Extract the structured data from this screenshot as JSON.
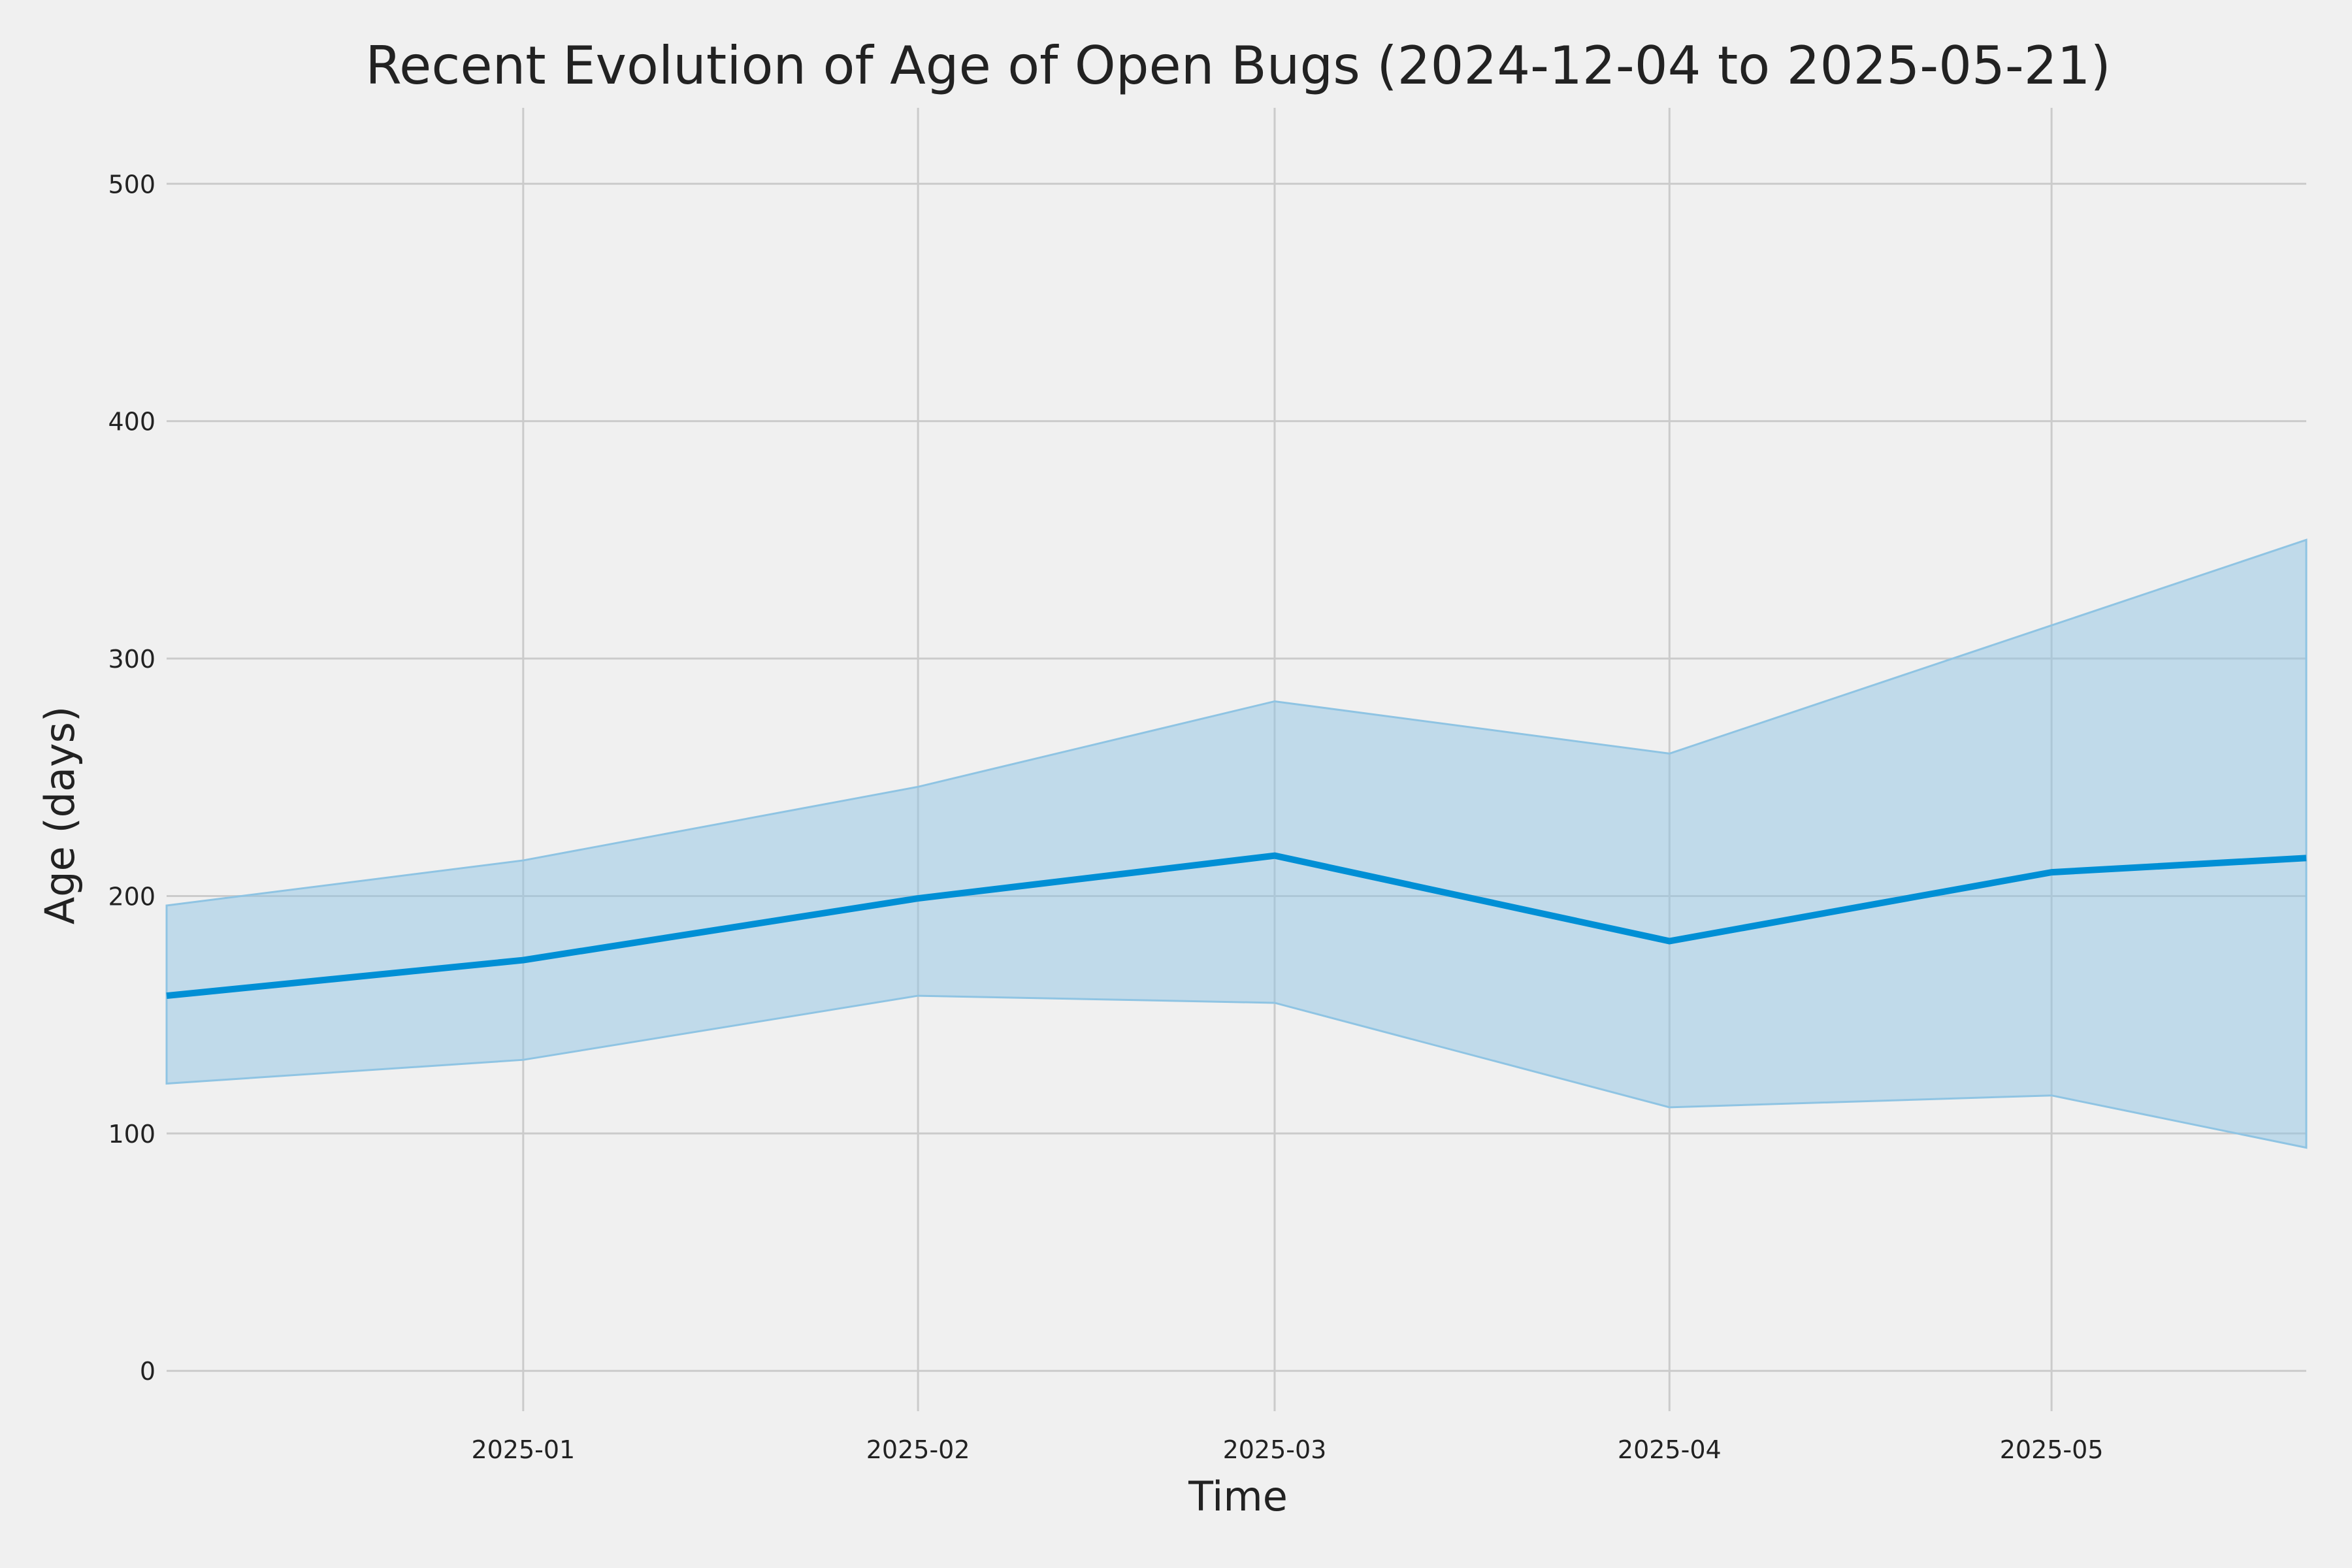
{
  "chart_data": {
    "type": "line",
    "title": "Recent Evolution of Age of Open Bugs (2024-12-04 to 2025-05-21)",
    "xlabel": "Time",
    "ylabel": "Age (days)",
    "xlim": [
      "2024-12-04",
      "2025-05-21"
    ],
    "ylim": [
      -17,
      532
    ],
    "x_ticks": [
      "2025-01",
      "2025-02",
      "2025-03",
      "2025-04",
      "2025-05"
    ],
    "y_ticks": [
      0,
      100,
      200,
      300,
      400,
      500
    ],
    "grid": true,
    "series": [
      {
        "x": [
          "2024-12-04",
          "2025-01-01",
          "2025-02-01",
          "2025-03-01",
          "2025-04-01",
          "2025-05-01",
          "2025-05-21"
        ],
        "values": [
          158,
          173,
          199,
          217,
          181,
          210,
          216
        ],
        "lower": [
          121,
          131,
          158,
          155,
          111,
          116,
          94
        ],
        "upper": [
          196,
          215,
          246,
          282,
          260,
          314,
          350
        ],
        "color": "#008fd5",
        "band_color": "#8fc4e3"
      }
    ]
  }
}
